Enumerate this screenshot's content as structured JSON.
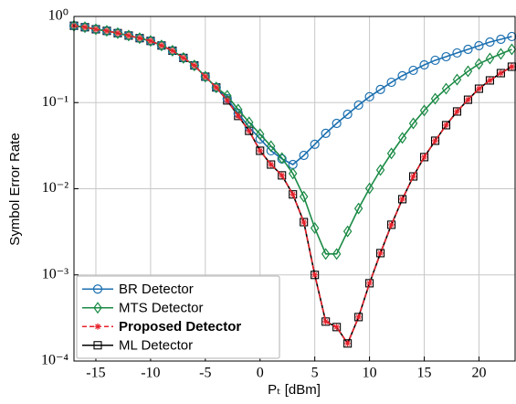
{
  "chart_data": {
    "type": "line",
    "xlabel": "Pₜ [dBm]",
    "ylabel": "Symbol Error Rate",
    "x": [
      -17,
      -16,
      -15,
      -14,
      -13,
      -12,
      -11,
      -10,
      -9,
      -8,
      -7,
      -6,
      -5,
      -4,
      -3,
      -2,
      -1,
      0,
      1,
      2,
      3,
      4,
      5,
      6,
      7,
      8,
      9,
      10,
      11,
      12,
      13,
      14,
      15,
      16,
      17,
      18,
      19,
      20,
      21,
      22,
      23
    ],
    "xlim": [
      -17,
      23.3
    ],
    "xticks": [
      -15,
      -10,
      -5,
      0,
      5,
      10,
      15,
      20
    ],
    "ylim": [
      0.0001,
      1
    ],
    "yscale": "log",
    "yticks": [
      {
        "value": 0.0001,
        "label": "10⁻⁴"
      },
      {
        "value": 0.001,
        "label": "10⁻³"
      },
      {
        "value": 0.01,
        "label": "10⁻²"
      },
      {
        "value": 0.1,
        "label": "10⁻¹"
      },
      {
        "value": 1,
        "label": "10⁰"
      }
    ],
    "grid": true,
    "legend": "lower left",
    "series": [
      {
        "name": "BR Detector",
        "color": "#1a6fb0",
        "marker": "circle",
        "dashed": false,
        "bold": false,
        "values": [
          0.78,
          0.75,
          0.71,
          0.68,
          0.64,
          0.6,
          0.56,
          0.52,
          0.46,
          0.4,
          0.33,
          0.27,
          0.2,
          0.15,
          0.111,
          0.075,
          0.052,
          0.0379,
          0.0276,
          0.0222,
          0.0191,
          0.0244,
          0.0328,
          0.044,
          0.0574,
          0.0733,
          0.0936,
          0.117,
          0.142,
          0.172,
          0.205,
          0.237,
          0.274,
          0.31,
          0.341,
          0.377,
          0.415,
          0.458,
          0.505,
          0.543,
          0.585
        ]
      },
      {
        "name": "MTS Detector",
        "color": "#1a8a45",
        "marker": "diamond",
        "dashed": false,
        "bold": false,
        "values": [
          0.78,
          0.75,
          0.71,
          0.68,
          0.64,
          0.6,
          0.56,
          0.52,
          0.46,
          0.4,
          0.33,
          0.27,
          0.2,
          0.15,
          0.12,
          0.083,
          0.059,
          0.043,
          0.0312,
          0.0227,
          0.015,
          0.0081,
          0.0035,
          0.00175,
          0.00175,
          0.0032,
          0.0059,
          0.0101,
          0.0165,
          0.0257,
          0.0389,
          0.0574,
          0.081,
          0.111,
          0.145,
          0.185,
          0.231,
          0.281,
          0.325,
          0.367,
          0.415
        ]
      },
      {
        "name": "Proposed Detector",
        "color": "#e8202a",
        "marker": "asterisk",
        "dashed": true,
        "bold": true,
        "values": [
          0.78,
          0.75,
          0.71,
          0.68,
          0.64,
          0.6,
          0.56,
          0.52,
          0.46,
          0.4,
          0.33,
          0.27,
          0.2,
          0.15,
          0.106,
          0.07,
          0.047,
          0.0276,
          0.0191,
          0.0143,
          0.0086,
          0.0041,
          0.001,
          0.000287,
          0.000248,
          0.00016,
          0.000324,
          0.0008,
          0.00179,
          0.00382,
          0.00757,
          0.0139,
          0.0233,
          0.0361,
          0.0547,
          0.0789,
          0.108,
          0.145,
          0.181,
          0.22,
          0.261
        ]
      },
      {
        "name": "ML Detector",
        "color": "#000000",
        "marker": "square",
        "dashed": false,
        "bold": false,
        "values": [
          0.78,
          0.75,
          0.71,
          0.68,
          0.64,
          0.6,
          0.56,
          0.52,
          0.46,
          0.4,
          0.33,
          0.27,
          0.2,
          0.15,
          0.106,
          0.07,
          0.047,
          0.0276,
          0.0191,
          0.0143,
          0.0086,
          0.0041,
          0.001,
          0.000287,
          0.000248,
          0.00016,
          0.000324,
          0.0008,
          0.00179,
          0.00382,
          0.00757,
          0.0139,
          0.0233,
          0.0361,
          0.0547,
          0.0789,
          0.108,
          0.145,
          0.181,
          0.22,
          0.261
        ]
      }
    ]
  }
}
